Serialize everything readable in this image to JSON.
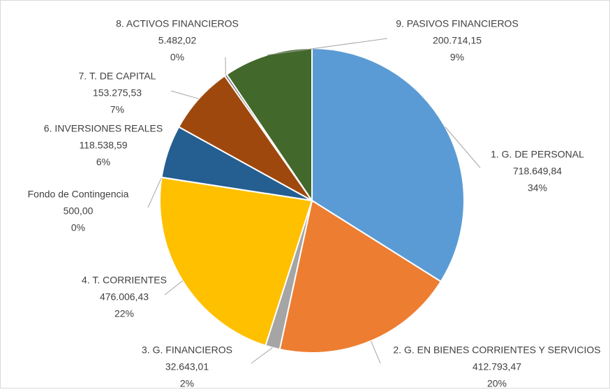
{
  "chart_data": {
    "type": "pie",
    "categories": [
      "1. G. DE PERSONAL",
      "2. G. EN BIENES CORRIENTES Y SERVICIOS",
      "3. G. FINANCIEROS",
      "4. T. CORRIENTES",
      "Fondo de Contingencia",
      "6. INVERSIONES REALES",
      "7. T. DE CAPITAL",
      "8. ACTIVOS FINANCIEROS",
      "9. PASIVOS FINANCIEROS"
    ],
    "values": [
      718649.84,
      412793.47,
      32643.01,
      476006.43,
      500.0,
      118538.59,
      153275.53,
      5482.02,
      200714.15
    ],
    "value_labels": [
      "718.649,84",
      "412.793,47",
      "32.643,01",
      "476.006,43",
      "500,00",
      "118.538,59",
      "153.275,53",
      "5.482,02",
      "200.714,15"
    ],
    "percent_labels": [
      "34%",
      "20%",
      "2%",
      "22%",
      "0%",
      "6%",
      "7%",
      "0%",
      "9%"
    ],
    "colors": [
      "#5b9bd5",
      "#ed7d31",
      "#a5a5a5",
      "#ffc000",
      "#4472c4",
      "#255e91",
      "#9e480e",
      "#636363",
      "#43682b"
    ]
  }
}
